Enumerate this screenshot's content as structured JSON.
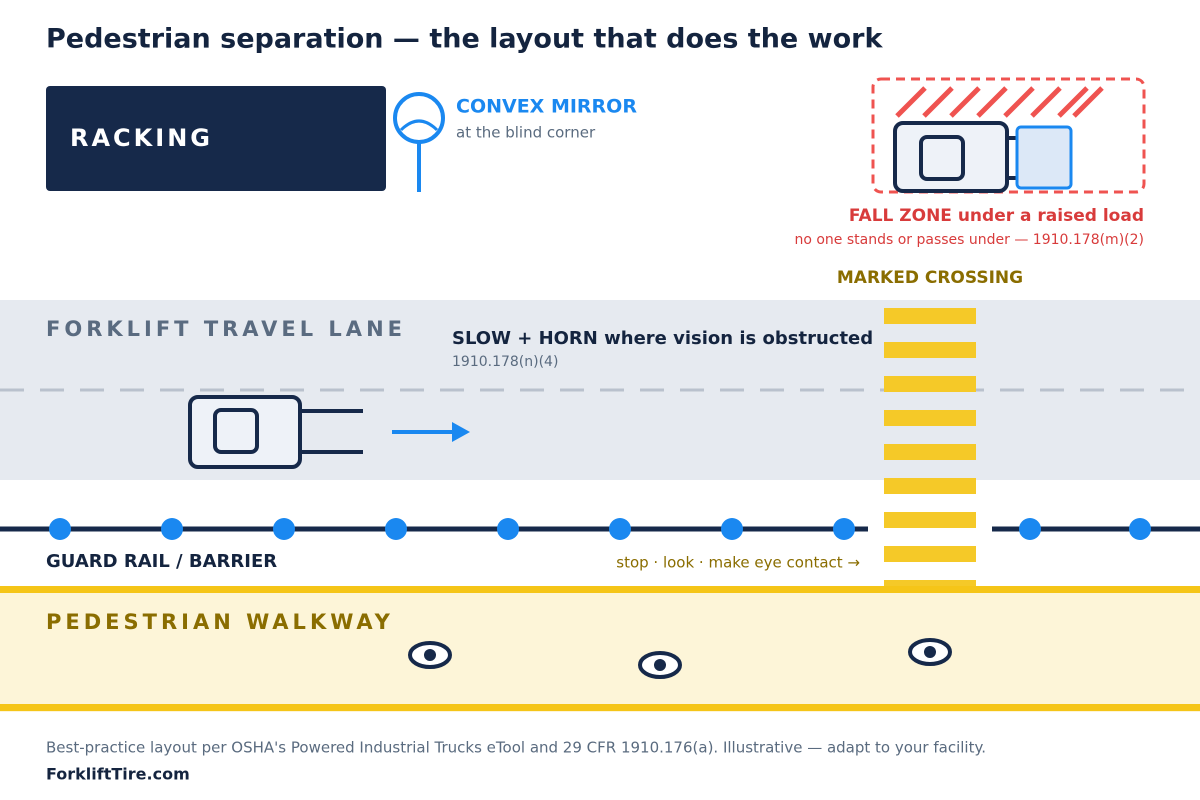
{
  "title": "Pedestrian separation — the layout that does the work",
  "racking": {
    "label": "RACKING"
  },
  "mirror": {
    "label": "CONVEX MIRROR",
    "note": "at the blind corner"
  },
  "fall_zone": {
    "label": "FALL ZONE under a raised load",
    "note": "no one stands or passes under — 1910.178(m)(2)"
  },
  "crossing": {
    "label": "MARKED CROSSING"
  },
  "travel_lane": {
    "label": "FORKLIFT TRAVEL LANE",
    "rule": "SLOW + HORN where vision is obstructed",
    "citation": "1910.178(n)(4)"
  },
  "barrier": {
    "label": "GUARD RAIL / BARRIER",
    "cue": "stop · look · make eye contact →"
  },
  "walkway": {
    "label": "PEDESTRIAN WALKWAY"
  },
  "footer": {
    "note": "Best-practice layout per OSHA's Powered Industrial Trucks eTool and 29 CFR 1910.176(a). Illustrative — adapt to your facility.",
    "brand": "ForkliftTire.com"
  }
}
